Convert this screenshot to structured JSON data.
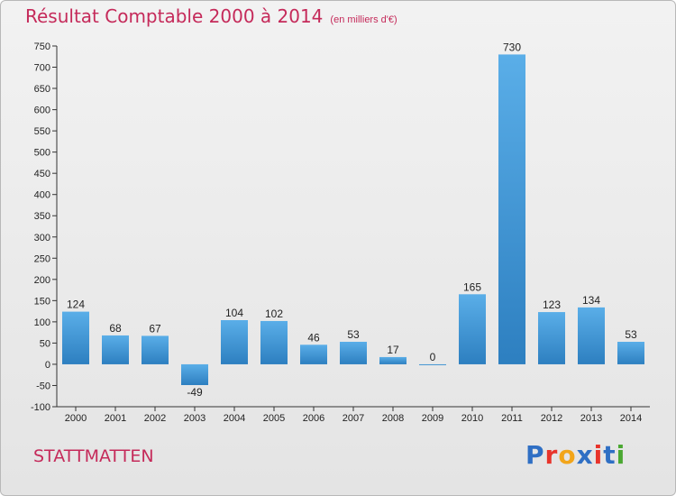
{
  "header": {
    "title": "Résultat Comptable 2000 à 2014",
    "unit": "(en milliers d'€)"
  },
  "footer": {
    "commune": "STATTMATTEN"
  },
  "logo": {
    "letters": [
      "P",
      "r",
      "o",
      "x",
      "i",
      "t",
      "i"
    ],
    "colors": [
      "#2f6fc4",
      "#e8342b",
      "#f2a51a",
      "#2f6fc4",
      "#e8342b",
      "#2f6fc4",
      "#4aa832"
    ]
  },
  "colors": {
    "title": "#c52a5a",
    "bar_top": "#5aaee8",
    "bar_bottom": "#2d7fc0",
    "axis": "#333333",
    "grid": "#cfcfcf"
  },
  "chart_data": {
    "type": "bar",
    "title": "Résultat Comptable 2000 à 2014",
    "subtitle": "(en milliers d'€)",
    "categories": [
      "2000",
      "2001",
      "2002",
      "2003",
      "2004",
      "2005",
      "2006",
      "2007",
      "2008",
      "2009",
      "2010",
      "2011",
      "2012",
      "2013",
      "2014"
    ],
    "values": [
      124,
      68,
      67,
      -49,
      104,
      102,
      46,
      53,
      17,
      0,
      165,
      730,
      123,
      134,
      53
    ],
    "labels": [
      "124",
      "68",
      "67",
      "-49",
      "104",
      "102",
      "46",
      "53",
      "17",
      "0",
      "165",
      "730",
      "123",
      "134",
      "53"
    ],
    "yticks": [
      "-100",
      "-50",
      "0",
      "50",
      "100",
      "150",
      "200",
      "250",
      "300",
      "350",
      "400",
      "450",
      "500",
      "550",
      "600",
      "650",
      "700",
      "750"
    ],
    "ylim": [
      -100,
      750
    ],
    "ytick_step": 50,
    "grid": false,
    "xlabel": "",
    "ylabel": ""
  }
}
